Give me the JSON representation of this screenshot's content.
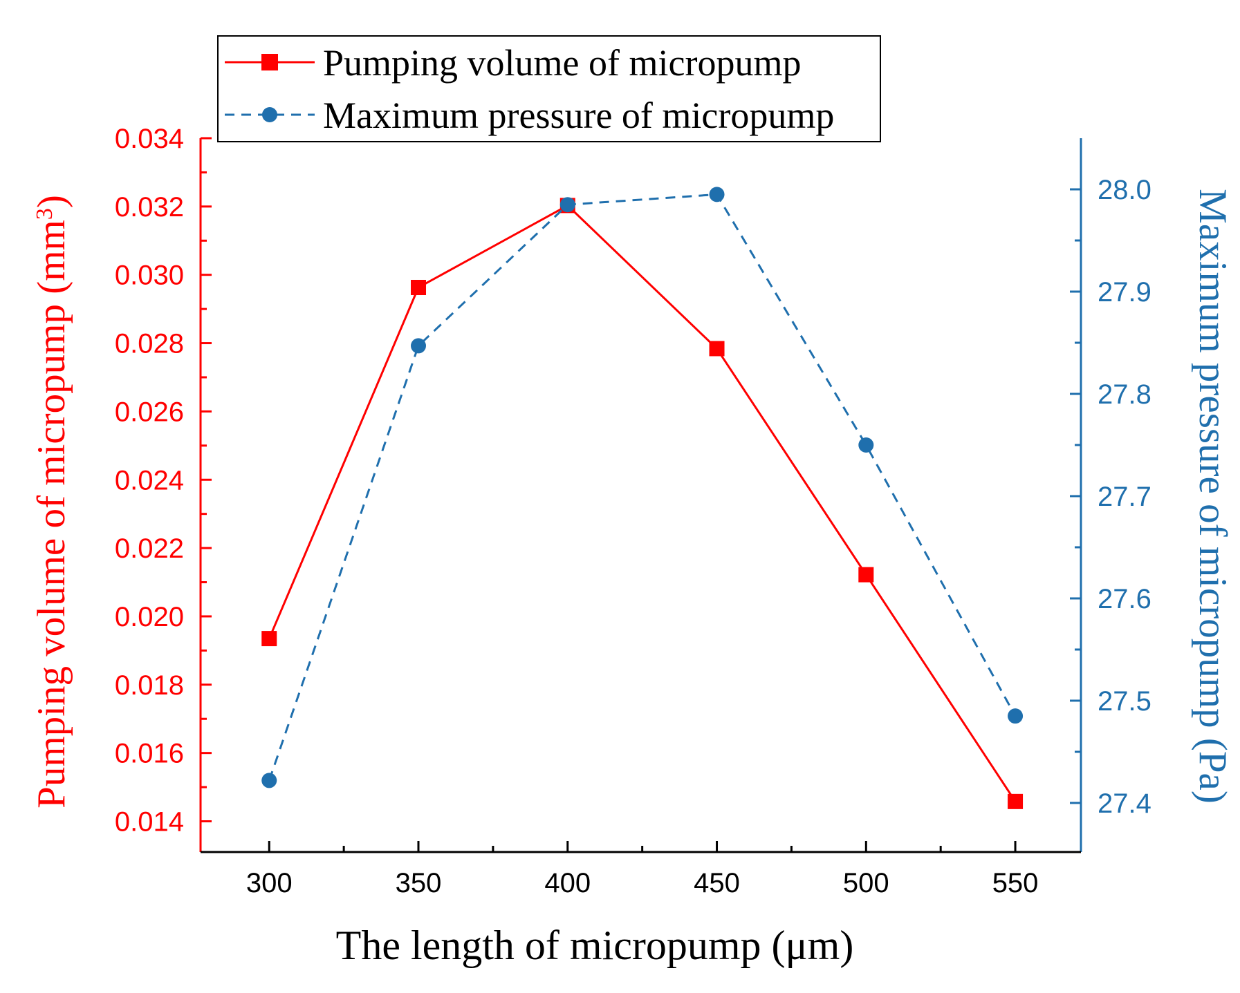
{
  "chart_data": {
    "type": "line",
    "x": [
      300,
      350,
      400,
      450,
      500,
      550
    ],
    "xlabel": "The length of micropump (μm)",
    "xlim": [
      277,
      572
    ],
    "xticks": [
      300,
      350,
      400,
      450,
      500,
      550
    ],
    "series": [
      {
        "name": "Pumping volume of micropump",
        "axis": "left",
        "color": "#ff0000",
        "line_style": "solid",
        "marker": "square",
        "values": [
          0.01935,
          0.02963,
          0.03203,
          0.02784,
          0.02122,
          0.01458
        ]
      },
      {
        "name": "Maximum pressure of micropump",
        "axis": "right",
        "color": "#1f6fad",
        "line_style": "dashed",
        "marker": "circle",
        "values": [
          27.422,
          27.847,
          27.985,
          27.995,
          27.75,
          27.485
        ]
      }
    ],
    "y_left": {
      "label_main": "Pumping volume of micropump (mm",
      "label_sup": "3",
      "label_end": ")",
      "lim": [
        0.0131,
        0.034
      ],
      "ticks": [
        "0.014",
        "0.016",
        "0.018",
        "0.020",
        "0.022",
        "0.024",
        "0.026",
        "0.028",
        "0.030",
        "0.032",
        "0.034"
      ],
      "color": "#ff0000"
    },
    "y_right": {
      "label": "Maximum pressure of micropump (Pa)",
      "lim": [
        27.352,
        28.05
      ],
      "ticks": [
        "27.4",
        "27.5",
        "27.6",
        "27.7",
        "27.8",
        "27.9",
        "28.0"
      ],
      "color": "#1f6fad"
    },
    "legend_position": "top-left"
  }
}
